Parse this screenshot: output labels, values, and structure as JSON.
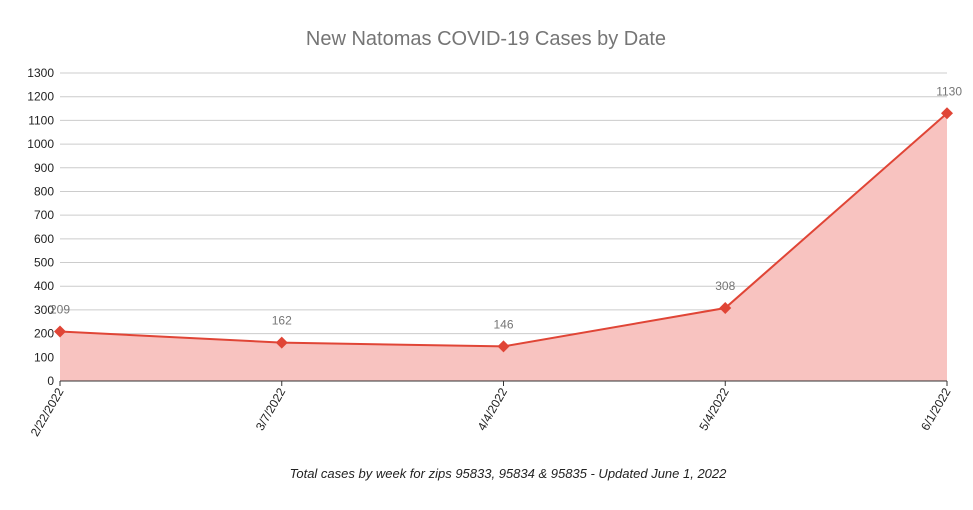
{
  "chart_data": {
    "type": "area",
    "title": "New Natomas COVID-19 Cases by Date",
    "xlabel": "Total cases by week for zips 95833, 95834 & 95835 - Updated June 1, 2022",
    "ylabel": "",
    "categories": [
      "2/22/2022",
      "3/7/2022",
      "4/4/2022",
      "5/4/2022",
      "6/1/2022"
    ],
    "series": [
      {
        "values": [
          209,
          162,
          146,
          308,
          1130
        ]
      }
    ],
    "data_labels": [
      "209",
      "162",
      "146",
      "308",
      "1130"
    ],
    "ylim": [
      0,
      1300
    ],
    "yticks": [
      0,
      100,
      200,
      300,
      400,
      500,
      600,
      700,
      800,
      900,
      1000,
      1100,
      1200,
      1300
    ],
    "grid": true,
    "legend": "none",
    "colors": {
      "line": "#e04536",
      "fill": "#f8c3c0",
      "grid": "#cccccc",
      "axis": "#333333"
    }
  }
}
